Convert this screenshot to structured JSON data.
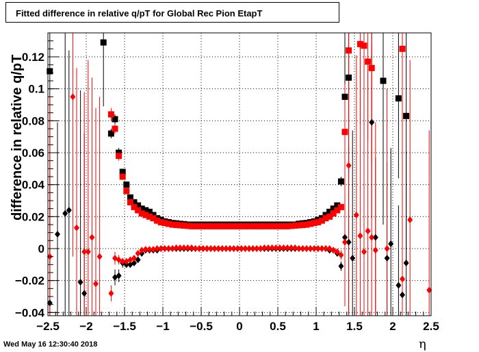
{
  "title": "Fitted difference in relative q/pT for Global Rec Pion EtapT",
  "datestamp": "Wed May 16 12:30:40 2018",
  "colors": {
    "series_black": "#000000",
    "series_red": "#ff0000",
    "grid": "#000000",
    "background": "#ffffff"
  },
  "chart_data": {
    "type": "scatter",
    "title": "Fitted difference in relative q/pT for Global Rec Pion EtapT",
    "xlabel": "η",
    "ylabel": "difference in relative q/pT",
    "xlim": [
      -2.5,
      2.5
    ],
    "ylim": [
      -0.042,
      0.135
    ],
    "grid": true,
    "xticks": [
      -2.5,
      -2,
      -1.5,
      -1,
      -0.5,
      0,
      0.5,
      1,
      1.5,
      2,
      2.5
    ],
    "xtick_labels": [
      "−2.5",
      "−2",
      "−1.5",
      "−1",
      "−0.5",
      "0",
      "0.5",
      "1",
      "1.5",
      "2",
      "2.5"
    ],
    "yticks": [
      -0.04,
      -0.02,
      0,
      0.02,
      0.04,
      0.06,
      0.08,
      0.1,
      0.12
    ],
    "ytick_labels": [
      "−0.04",
      "−0.02",
      "0",
      "0.02",
      "0.04",
      "0.06",
      "0.08",
      "0.1",
      "0.12"
    ],
    "series": [
      {
        "marker": "square",
        "color": "#000000",
        "x": [
          -2.475,
          -1.775,
          -1.675,
          -1.625,
          -1.575,
          -1.525,
          -1.475,
          -1.425,
          -1.375,
          -1.325,
          -1.275,
          -1.225,
          -1.175,
          -1.125,
          -1.075,
          -1.025,
          -0.975,
          -0.925,
          -0.875,
          -0.825,
          -0.775,
          -0.725,
          -0.675,
          -0.625,
          -0.575,
          -0.525,
          -0.475,
          -0.425,
          -0.375,
          -0.325,
          -0.275,
          -0.225,
          -0.175,
          -0.125,
          -0.075,
          -0.025,
          0.025,
          0.075,
          0.125,
          0.175,
          0.225,
          0.275,
          0.325,
          0.375,
          0.425,
          0.475,
          0.525,
          0.575,
          0.625,
          0.675,
          0.725,
          0.775,
          0.825,
          0.875,
          0.925,
          0.975,
          1.025,
          1.075,
          1.125,
          1.175,
          1.225,
          1.275,
          1.325,
          1.375,
          1.425,
          1.875,
          2.075,
          2.175
        ],
        "y": [
          0.111,
          0.129,
          0.072,
          0.081,
          0.06,
          0.048,
          0.04,
          0.032,
          0.029,
          0.027,
          0.025,
          0.024,
          0.023,
          0.021,
          0.019,
          0.018,
          0.017,
          0.0165,
          0.016,
          0.0158,
          0.0155,
          0.0153,
          0.015,
          0.015,
          0.015,
          0.015,
          0.015,
          0.015,
          0.015,
          0.015,
          0.015,
          0.015,
          0.015,
          0.015,
          0.015,
          0.015,
          0.015,
          0.015,
          0.015,
          0.015,
          0.015,
          0.015,
          0.015,
          0.015,
          0.015,
          0.015,
          0.015,
          0.015,
          0.015,
          0.015,
          0.015,
          0.0155,
          0.0158,
          0.016,
          0.0165,
          0.017,
          0.018,
          0.019,
          0.021,
          0.023,
          0.025,
          0.027,
          0.042,
          0.095,
          0.107,
          0.105,
          0.094,
          0.083
        ],
        "errors": [
          0.12,
          0.04,
          0.003,
          0.003,
          0.003,
          0.002,
          0.002,
          0.001,
          0.001,
          0.001,
          0,
          0,
          0,
          0,
          0,
          0,
          0,
          0,
          0,
          0,
          0,
          0,
          0,
          0,
          0,
          0,
          0,
          0,
          0,
          0,
          0,
          0,
          0,
          0,
          0,
          0,
          0,
          0,
          0,
          0,
          0,
          0,
          0,
          0,
          0,
          0,
          0,
          0,
          0,
          0,
          0,
          0,
          0,
          0,
          0,
          0,
          0,
          0,
          0,
          0,
          0,
          0,
          0.003,
          0.04,
          0.06,
          0.09,
          0.05,
          0.09
        ]
      },
      {
        "marker": "diamond",
        "color": "#000000",
        "x": [
          -2.475,
          -2.375,
          -2.275,
          -2.225,
          -2.075,
          -2.025,
          -1.625,
          -1.575,
          -1.525,
          -1.475,
          -1.425,
          -1.375,
          -1.325,
          -1.275,
          -1.225,
          -1.175,
          -1.125,
          -1.075,
          -1.025,
          -0.975,
          -0.925,
          -0.875,
          -0.825,
          -0.775,
          -0.725,
          -0.675,
          -0.625,
          -0.575,
          -0.525,
          -0.475,
          -0.425,
          -0.375,
          -0.325,
          -0.275,
          -0.225,
          -0.175,
          -0.125,
          -0.075,
          -0.025,
          0.025,
          0.075,
          0.125,
          0.175,
          0.225,
          0.275,
          0.325,
          0.375,
          0.425,
          0.475,
          0.525,
          0.575,
          0.625,
          0.675,
          0.725,
          0.775,
          0.825,
          0.875,
          0.925,
          0.975,
          1.025,
          1.075,
          1.125,
          1.175,
          1.225,
          1.275,
          1.325,
          1.375,
          1.425,
          1.475,
          1.725,
          1.775,
          1.925,
          1.975,
          2.075,
          2.125,
          2.175
        ],
        "y": [
          -0.034,
          0.009,
          0.022,
          0.024,
          -0.021,
          -0.028,
          -0.018,
          -0.017,
          -0.009,
          -0.01,
          -0.01,
          -0.009,
          -0.007,
          -0.003,
          -0.001,
          -0.001,
          -0.001,
          -0.001,
          0,
          0,
          0,
          0,
          0,
          0,
          0,
          0,
          0,
          0,
          0,
          0,
          0,
          0,
          0,
          0,
          0,
          0,
          0,
          0,
          0,
          0,
          0,
          0,
          0,
          0,
          0,
          0,
          0,
          0,
          0,
          0,
          0,
          0,
          0,
          0,
          0,
          0,
          0,
          0,
          0,
          0,
          0,
          0,
          -0.001,
          -0.001,
          -0.003,
          -0.011,
          0.007,
          0.004,
          -0.006,
          0.079,
          0.007,
          -0.006,
          0.003,
          -0.023,
          -0.029,
          -0.009
        ],
        "errors": [
          0.08,
          0.07,
          0.12,
          0.1,
          0.12,
          0.1,
          0.005,
          0.004,
          0.003,
          0.002,
          0.002,
          0.001,
          0.001,
          0,
          0,
          0,
          0,
          0,
          0,
          0,
          0,
          0,
          0,
          0,
          0,
          0,
          0,
          0,
          0,
          0,
          0,
          0,
          0,
          0,
          0,
          0,
          0,
          0,
          0,
          0,
          0,
          0,
          0,
          0,
          0,
          0,
          0,
          0,
          0,
          0,
          0,
          0,
          0,
          0,
          0,
          0,
          0,
          0,
          0,
          0,
          0,
          0,
          0,
          0,
          0,
          0.003,
          0.04,
          0.06,
          0.08,
          0.06,
          0.05,
          0.06,
          0.06,
          0.05,
          0.06,
          0.07
        ]
      },
      {
        "marker": "square",
        "color": "#ff0000",
        "x": [
          -1.675,
          -1.625,
          -1.575,
          -1.525,
          -1.475,
          -1.425,
          -1.375,
          -1.325,
          -1.275,
          -1.225,
          -1.175,
          -1.125,
          -1.075,
          -1.025,
          -0.975,
          -0.925,
          -0.875,
          -0.825,
          -0.775,
          -0.725,
          -0.675,
          -0.625,
          -0.575,
          -0.525,
          -0.475,
          -0.425,
          -0.375,
          -0.325,
          -0.275,
          -0.225,
          -0.175,
          -0.125,
          -0.075,
          -0.025,
          0.025,
          0.075,
          0.125,
          0.175,
          0.225,
          0.275,
          0.325,
          0.375,
          0.425,
          0.475,
          0.525,
          0.575,
          0.625,
          0.675,
          0.725,
          0.775,
          0.825,
          0.875,
          0.925,
          0.975,
          1.025,
          1.075,
          1.125,
          1.175,
          1.225,
          1.275,
          1.325,
          1.375,
          1.425,
          1.575,
          1.625,
          1.675,
          1.725,
          2.125
        ],
        "y": [
          0.084,
          0.075,
          0.058,
          0.045,
          0.036,
          0.029,
          0.026,
          0.024,
          0.022,
          0.021,
          0.02,
          0.019,
          0.0175,
          0.0165,
          0.016,
          0.0155,
          0.015,
          0.0148,
          0.0146,
          0.0144,
          0.0142,
          0.014,
          0.014,
          0.014,
          0.014,
          0.014,
          0.014,
          0.014,
          0.014,
          0.014,
          0.014,
          0.014,
          0.014,
          0.014,
          0.014,
          0.014,
          0.014,
          0.014,
          0.014,
          0.014,
          0.014,
          0.014,
          0.014,
          0.014,
          0.014,
          0.014,
          0.014,
          0.0142,
          0.0144,
          0.0146,
          0.0148,
          0.015,
          0.0155,
          0.016,
          0.0165,
          0.0175,
          0.019,
          0.02,
          0.022,
          0.024,
          0.026,
          0.073,
          0.124,
          0.128,
          0.127,
          0.117,
          0.113,
          0.125
        ],
        "errors": [
          0.004,
          0.003,
          0.003,
          0.002,
          0.002,
          0.001,
          0.001,
          0,
          0,
          0,
          0,
          0,
          0,
          0,
          0,
          0,
          0,
          0,
          0,
          0,
          0,
          0,
          0,
          0,
          0,
          0,
          0,
          0,
          0,
          0,
          0,
          0,
          0,
          0,
          0,
          0,
          0,
          0,
          0,
          0,
          0,
          0,
          0,
          0,
          0,
          0,
          0,
          0,
          0,
          0,
          0,
          0,
          0,
          0,
          0,
          0,
          0,
          0,
          0,
          0,
          0,
          0.03,
          0.05,
          0.05,
          0.06,
          0.05,
          0.06,
          0.07
        ]
      },
      {
        "marker": "diamond",
        "color": "#ff0000",
        "x": [
          -2.475,
          -2.175,
          -2.125,
          -2.025,
          -1.975,
          -1.925,
          -1.875,
          -1.825,
          -1.675,
          -1.625,
          -1.575,
          -1.525,
          -1.475,
          -1.425,
          -1.375,
          -1.325,
          -1.275,
          -1.225,
          -1.175,
          -1.125,
          -1.075,
          -1.025,
          -0.975,
          -0.925,
          -0.875,
          -0.825,
          -0.775,
          -0.725,
          -0.675,
          -0.625,
          -0.575,
          -0.525,
          -0.475,
          -0.425,
          -0.375,
          -0.325,
          -0.275,
          -0.225,
          -0.175,
          -0.125,
          -0.075,
          -0.025,
          0.025,
          0.075,
          0.125,
          0.175,
          0.225,
          0.275,
          0.325,
          0.375,
          0.425,
          0.475,
          0.525,
          0.575,
          0.625,
          0.675,
          0.725,
          0.775,
          0.825,
          0.875,
          0.925,
          0.975,
          1.025,
          1.075,
          1.125,
          1.175,
          1.225,
          1.275,
          1.325,
          1.375,
          1.425,
          1.525,
          1.575,
          1.625,
          1.675,
          1.725,
          1.775,
          1.925,
          2.125,
          2.225,
          2.475
        ],
        "y": [
          -0.005,
          0.095,
          0.013,
          -0.002,
          -0.002,
          0.007,
          -0.022,
          -0.005,
          -0.028,
          -0.006,
          -0.007,
          -0.008,
          -0.008,
          -0.007,
          -0.006,
          -0.003,
          -0.001,
          -0.0005,
          -0.0005,
          -0.0005,
          0,
          0,
          0,
          0,
          0,
          0.0005,
          0.0005,
          0.0005,
          0.0005,
          0.0005,
          0,
          0,
          0,
          0,
          0,
          0,
          0,
          0,
          0,
          0,
          0,
          0,
          0,
          0,
          0,
          0,
          0,
          0,
          0.0005,
          0.0005,
          0.0005,
          0.0005,
          0.0005,
          0.0005,
          0.0005,
          0.0005,
          0.0005,
          0,
          0,
          0,
          0,
          0,
          0,
          0,
          0,
          0,
          -0.001,
          -0.002,
          -0.004,
          0.004,
          0.052,
          0.021,
          0.008,
          -0.002,
          0.011,
          0.007,
          -0.001,
          0.0,
          -0.019,
          0.018,
          -0.026
        ],
        "errors": [
          0.1,
          0.1,
          0.1,
          0.1,
          0.12,
          0.1,
          0.11,
          0.1,
          0.005,
          0.004,
          0.003,
          0.002,
          0.002,
          0.001,
          0.001,
          0.001,
          0,
          0,
          0,
          0,
          0,
          0,
          0,
          0,
          0,
          0,
          0,
          0,
          0,
          0,
          0,
          0,
          0,
          0,
          0,
          0,
          0,
          0,
          0,
          0,
          0,
          0,
          0,
          0,
          0,
          0,
          0,
          0,
          0,
          0,
          0,
          0,
          0,
          0,
          0,
          0,
          0,
          0,
          0,
          0,
          0,
          0,
          0,
          0,
          0,
          0,
          0,
          0,
          0.003,
          0.04,
          0.12,
          0.1,
          0.12,
          0.1,
          0.1,
          0.12,
          0.08,
          0.1,
          0.12,
          0.1,
          0.1
        ]
      }
    ]
  }
}
